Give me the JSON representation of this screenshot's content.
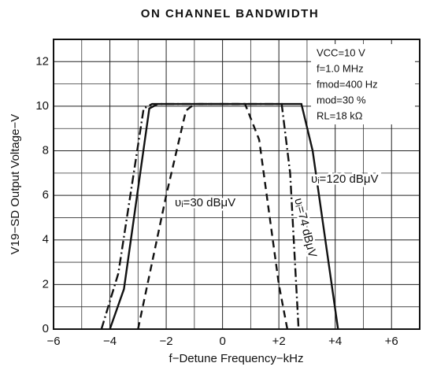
{
  "chart_data": {
    "type": "line",
    "title": "ON CHANNEL BANDWIDTH",
    "x_label": "f−Detune Frequency−kHz",
    "y_label": "V19−SD Output Voltage−V",
    "xlim": [
      -6,
      7
    ],
    "ylim": [
      0,
      13
    ],
    "xticks": [
      {
        "value": -6,
        "label": "−6"
      },
      {
        "value": -4,
        "label": "−4"
      },
      {
        "value": -2,
        "label": "−2"
      },
      0,
      {
        "value": 2,
        "label": "+2"
      },
      {
        "value": 4,
        "label": "+4"
      },
      {
        "value": 6,
        "label": "+6"
      }
    ],
    "yticks": [
      0,
      2,
      4,
      6,
      8,
      10,
      12
    ],
    "minor_xticks": [
      -5,
      -3,
      -1,
      1,
      3,
      5
    ],
    "minor_yticks": [
      1,
      3,
      5,
      7,
      9,
      11
    ],
    "grid": true,
    "annotations": [
      "VCC=10 V",
      "f=1.0 MHz",
      "fmod=400 Hz",
      "mod=30 %",
      "RL=18 kΩ"
    ],
    "series": [
      {
        "name": "υᵢ=120 dBμV",
        "color": "#111111",
        "linestyle": "solid",
        "x": [
          -4.0,
          -3.5,
          -2.6,
          -2.3,
          2.8,
          3.2,
          4.1
        ],
        "values": [
          0,
          1.8,
          9.9,
          10.1,
          10.1,
          8,
          0
        ]
      },
      {
        "name": "υᵢ=74 dBμV",
        "color": "#111111",
        "linestyle": "dashdot",
        "x": [
          -4.3,
          -3.7,
          -2.8,
          -2.5,
          2.1,
          2.4,
          2.7
        ],
        "values": [
          0,
          2.5,
          9.9,
          10.1,
          10.1,
          7,
          0
        ]
      },
      {
        "name": "υᵢ=30 dBμV",
        "color": "#111111",
        "linestyle": "dashed",
        "x": [
          -3.0,
          -2.0,
          -1.3,
          -1.0,
          0.8,
          1.3,
          2.0,
          2.3
        ],
        "values": [
          0,
          6,
          9.8,
          10.1,
          10.1,
          8.5,
          2,
          0
        ]
      }
    ]
  }
}
